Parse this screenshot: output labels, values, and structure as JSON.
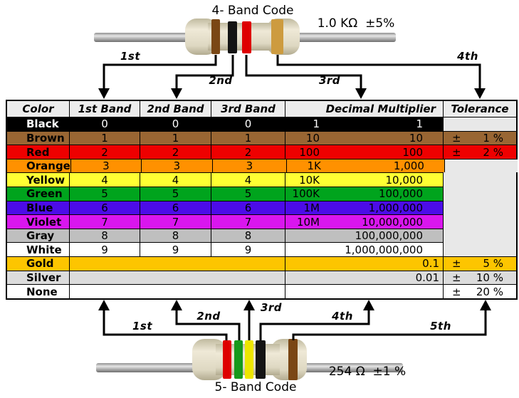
{
  "top_code": {
    "title": "4- Band Code",
    "value": "1.0 KΩ  ±5%",
    "bands": [
      "brown",
      "black",
      "red",
      "gold"
    ],
    "arrow_labels": [
      "1st",
      "2nd",
      "3rd",
      "4th"
    ]
  },
  "bottom_code": {
    "title": "5- Band Code",
    "value": "254 Ω  ±1 %",
    "bands": [
      "red",
      "green",
      "yellow",
      "black",
      "brown"
    ],
    "arrow_labels": [
      "1st",
      "2nd",
      "3rd",
      "4th",
      "5th"
    ]
  },
  "band_palette": {
    "brown": "#7a4715",
    "black": "#141414",
    "red": "#de0000",
    "gold": "#cd9b3f",
    "green": "#16991c",
    "yellow": "#ede600"
  },
  "table": {
    "headers": [
      "Color",
      "1st Band",
      "2nd Band",
      "3rd Band",
      "Decimal Multiplier",
      "Tolerance"
    ],
    "tolerance_sign": "±",
    "empty_tolerance_bg": "#e8e8e8",
    "rows": [
      {
        "color": "Black",
        "band1": "0",
        "band2": "0",
        "band3": "0",
        "mult_short": "1",
        "mult_full": "1",
        "tolerance": "",
        "bg": "#000000",
        "fg": "#ffffff",
        "tol_bg": "#e8e8e8"
      },
      {
        "color": "Brown",
        "band1": "1",
        "band2": "1",
        "band3": "1",
        "mult_short": "10",
        "mult_full": "10",
        "tolerance": "1 %",
        "bg": "#996633",
        "fg": "#000000",
        "tol_bg": ""
      },
      {
        "color": "Red",
        "band1": "2",
        "band2": "2",
        "band3": "2",
        "mult_short": "100",
        "mult_full": "100",
        "tolerance": "2 %",
        "bg": "#ee0000",
        "fg": "#000000",
        "tol_bg": ""
      },
      {
        "color": "Orange",
        "band1": "3",
        "band2": "3",
        "band3": "3",
        "mult_short": "1K",
        "mult_full": "1,000",
        "tolerance": "",
        "bg": "#ff9100",
        "fg": "#000000",
        "tol_bg": "#e8e8e8"
      },
      {
        "color": "Yellow",
        "band1": "4",
        "band2": "4",
        "band3": "4",
        "mult_short": "10K",
        "mult_full": "10,000",
        "tolerance": "",
        "bg": "#ffff33",
        "fg": "#000000",
        "tol_bg": "#e8e8e8"
      },
      {
        "color": "Green",
        "band1": "5",
        "band2": "5",
        "band3": "5",
        "mult_short": "100K",
        "mult_full": "100,000",
        "tolerance": "",
        "bg": "#00a41d",
        "fg": "#000000",
        "tol_bg": "#e8e8e8"
      },
      {
        "color": "Blue",
        "band1": "6",
        "band2": "6",
        "band3": "6",
        "mult_short": "1M",
        "mult_full": "1,000,000",
        "tolerance": "",
        "bg": "#4c0ce8",
        "fg": "#000000",
        "tol_bg": "#e8e8e8"
      },
      {
        "color": "Violet",
        "band1": "7",
        "band2": "7",
        "band3": "7",
        "mult_short": "10M",
        "mult_full": "10,000,000",
        "tolerance": "",
        "bg": "#d916ee",
        "fg": "#000000",
        "tol_bg": "#e8e8e8"
      },
      {
        "color": "Gray",
        "band1": "8",
        "band2": "8",
        "band3": "8",
        "mult_short": "",
        "mult_full": "100,000,000",
        "tolerance": "",
        "bg": "#bfbfbf",
        "fg": "#000000",
        "tol_bg": "#e8e8e8"
      },
      {
        "color": "White",
        "band1": "9",
        "band2": "9",
        "band3": "9",
        "mult_short": "",
        "mult_full": "1,000,000,000",
        "tolerance": "",
        "bg": "#ffffff",
        "fg": "#000000",
        "tol_bg": "#e8e8e8"
      },
      {
        "color": "Gold",
        "merged": true,
        "mult_full": "0.1",
        "tolerance": "5 %",
        "bg": "#fdc500",
        "fg": "#000000",
        "tol_bg": ""
      },
      {
        "color": "Silver",
        "merged": true,
        "mult_full": "0.01",
        "tolerance": "10 %",
        "bg": "#dcdcdc",
        "fg": "#000000",
        "tol_bg": ""
      },
      {
        "color": "None",
        "merged": true,
        "mult_full": "",
        "tolerance": "20 %",
        "bg": "#ffffff",
        "fg": "#000000",
        "tol_bg": ""
      }
    ]
  }
}
